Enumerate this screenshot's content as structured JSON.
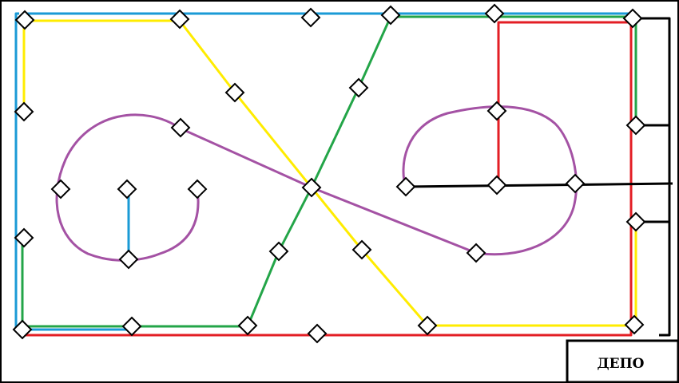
{
  "diagram": {
    "depot_label": "ДЕПО",
    "colors": {
      "background": "#ffffff",
      "frame": "#000000",
      "blue": "#1a9ad6",
      "green": "#23a548",
      "red": "#e31e24",
      "yellow": "#ffec00",
      "purple": "#a452a4",
      "black": "#000000",
      "station_fill": "#ffffff",
      "station_stroke": "#000000"
    },
    "line_colors": [
      "blue",
      "green",
      "red",
      "yellow",
      "purple",
      "black"
    ],
    "station_icon": "diamond-icon"
  }
}
